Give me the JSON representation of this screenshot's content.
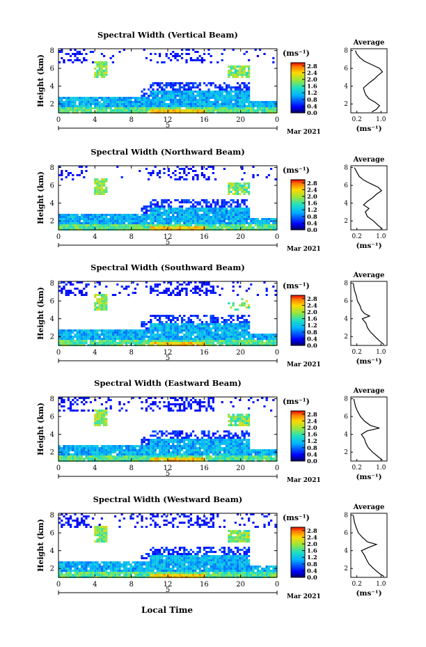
{
  "figure": {
    "x_axis_label": "Local Time",
    "date_label": "5",
    "month_label": "Mar 2021"
  },
  "chart_data": [
    {
      "type": "heatmap",
      "title": "Spectral Width (Vertical Beam)",
      "ylabel": "Height (km)",
      "xlabel": "Local Time",
      "x_ticks": [
        "0",
        "4",
        "8",
        "12",
        "16",
        "20",
        "0"
      ],
      "xlim": [
        0,
        24
      ],
      "y_ticks": [
        "2",
        "4",
        "6",
        "8"
      ],
      "ylim": [
        1,
        8.2
      ],
      "colorbar": {
        "unit": "(ms⁻¹)",
        "ticks": [
          "0.0",
          "0.4",
          "0.8",
          "1.2",
          "1.6",
          "2.0",
          "2.4",
          "2.8"
        ],
        "range": [
          0,
          3.0
        ]
      },
      "profile": {
        "title": "Average",
        "xlabel": "(ms⁻¹)",
        "x_ticks": [
          "0.2",
          "1.0"
        ],
        "xlim": [
          0,
          1.2
        ],
        "y_ticks": [
          "2",
          "4",
          "6",
          "8"
        ],
        "ylim": [
          1,
          8.2
        ],
        "points": [
          [
            0.7,
            1.1
          ],
          [
            0.85,
            1.4
          ],
          [
            0.95,
            1.8
          ],
          [
            0.8,
            2.2
          ],
          [
            0.6,
            2.6
          ],
          [
            0.5,
            3.0
          ],
          [
            0.45,
            3.4
          ],
          [
            0.42,
            3.8
          ],
          [
            0.52,
            4.1
          ],
          [
            0.62,
            4.4
          ],
          [
            0.78,
            4.8
          ],
          [
            0.9,
            5.2
          ],
          [
            1.05,
            5.6
          ],
          [
            0.95,
            6.0
          ],
          [
            0.7,
            6.4
          ],
          [
            0.45,
            6.8
          ],
          [
            0.3,
            7.2
          ],
          [
            0.2,
            7.6
          ],
          [
            0.15,
            8.0
          ]
        ]
      }
    },
    {
      "type": "heatmap",
      "title": "Spectral Width (Northward Beam)",
      "ylabel": "Height (km)",
      "xlabel": "Local Time",
      "x_ticks": [
        "0",
        "4",
        "8",
        "12",
        "16",
        "20",
        "0"
      ],
      "xlim": [
        0,
        24
      ],
      "y_ticks": [
        "2",
        "4",
        "6",
        "8"
      ],
      "ylim": [
        1,
        8.2
      ],
      "colorbar": {
        "unit": "(ms⁻¹)",
        "ticks": [
          "0.0",
          "0.4",
          "0.8",
          "1.2",
          "1.6",
          "2.0",
          "2.4",
          "2.8"
        ],
        "range": [
          0,
          3.0
        ]
      },
      "profile": {
        "title": "Average",
        "xlabel": "(ms⁻¹)",
        "x_ticks": [
          "0.2",
          "1.0"
        ],
        "xlim": [
          0,
          1.2
        ],
        "y_ticks": [
          "2",
          "4",
          "6",
          "8"
        ],
        "ylim": [
          1,
          8.2
        ],
        "points": [
          [
            1.05,
            1.1
          ],
          [
            0.9,
            1.5
          ],
          [
            0.75,
            2.0
          ],
          [
            0.55,
            2.5
          ],
          [
            0.48,
            3.0
          ],
          [
            0.6,
            3.4
          ],
          [
            0.42,
            3.8
          ],
          [
            0.55,
            4.2
          ],
          [
            0.72,
            4.6
          ],
          [
            0.85,
            5.0
          ],
          [
            1.02,
            5.4
          ],
          [
            0.9,
            5.8
          ],
          [
            0.65,
            6.2
          ],
          [
            0.42,
            6.6
          ],
          [
            0.28,
            7.0
          ],
          [
            0.18,
            7.6
          ],
          [
            0.12,
            8.0
          ]
        ]
      }
    },
    {
      "type": "heatmap",
      "title": "Spectral Width (Southward Beam)",
      "ylabel": "Height (km)",
      "xlabel": "Local Time",
      "x_ticks": [
        "0",
        "4",
        "8",
        "12",
        "16",
        "20",
        "0"
      ],
      "xlim": [
        0,
        24
      ],
      "y_ticks": [
        "2",
        "4",
        "6",
        "8"
      ],
      "ylim": [
        1,
        8.2
      ],
      "colorbar": {
        "unit": "(ms⁻¹)",
        "ticks": [
          "0.0",
          "0.4",
          "0.8",
          "1.2",
          "1.6",
          "2.0",
          "2.4",
          "2.8"
        ],
        "range": [
          0,
          3.0
        ]
      },
      "profile": {
        "title": "Average",
        "xlabel": "(ms⁻¹)",
        "x_ticks": [
          "0.2",
          "1.0"
        ],
        "xlim": [
          0,
          1.2
        ],
        "y_ticks": [
          "2",
          "4",
          "6",
          "8"
        ],
        "ylim": [
          1,
          8.2
        ],
        "points": [
          [
            1.1,
            1.1
          ],
          [
            0.95,
            1.5
          ],
          [
            0.8,
            2.0
          ],
          [
            0.65,
            2.5
          ],
          [
            0.55,
            3.0
          ],
          [
            0.5,
            3.5
          ],
          [
            0.38,
            4.0
          ],
          [
            0.62,
            4.3
          ],
          [
            0.45,
            4.6
          ],
          [
            0.35,
            5.0
          ],
          [
            0.3,
            5.5
          ],
          [
            0.22,
            6.0
          ],
          [
            0.18,
            6.6
          ],
          [
            0.12,
            7.2
          ],
          [
            0.08,
            8.0
          ]
        ]
      }
    },
    {
      "type": "heatmap",
      "title": "Spectral Width (Eastward Beam)",
      "ylabel": "Height (km)",
      "xlabel": "Local Time",
      "x_ticks": [
        "0",
        "4",
        "8",
        "12",
        "16",
        "20",
        "0"
      ],
      "xlim": [
        0,
        24
      ],
      "y_ticks": [
        "2",
        "4",
        "6",
        "8"
      ],
      "ylim": [
        1,
        8.2
      ],
      "colorbar": {
        "unit": "(ms⁻¹)",
        "ticks": [
          "0.0",
          "0.4",
          "0.8",
          "1.2",
          "1.6",
          "2.0",
          "2.4",
          "2.8"
        ],
        "range": [
          0,
          3.0
        ]
      },
      "profile": {
        "title": "Average",
        "xlabel": "(ms⁻¹)",
        "x_ticks": [
          "0.2",
          "1.0"
        ],
        "xlim": [
          0,
          1.2
        ],
        "y_ticks": [
          "2",
          "4",
          "6",
          "8"
        ],
        "ylim": [
          1,
          8.2
        ],
        "points": [
          [
            1.05,
            1.1
          ],
          [
            0.9,
            1.5
          ],
          [
            0.72,
            2.0
          ],
          [
            0.58,
            2.5
          ],
          [
            0.5,
            3.0
          ],
          [
            0.45,
            3.5
          ],
          [
            0.35,
            4.0
          ],
          [
            0.55,
            4.4
          ],
          [
            0.95,
            4.7
          ],
          [
            0.65,
            5.0
          ],
          [
            0.45,
            5.5
          ],
          [
            0.32,
            6.0
          ],
          [
            0.22,
            6.6
          ],
          [
            0.15,
            7.2
          ],
          [
            0.1,
            8.0
          ]
        ]
      }
    },
    {
      "type": "heatmap",
      "title": "Spectral Width (Westward Beam)",
      "ylabel": "Height (km)",
      "xlabel": "Local Time",
      "x_ticks": [
        "0",
        "4",
        "8",
        "12",
        "16",
        "20",
        "0"
      ],
      "xlim": [
        0,
        24
      ],
      "y_ticks": [
        "2",
        "4",
        "6",
        "8"
      ],
      "ylim": [
        1,
        8.2
      ],
      "colorbar": {
        "unit": "(ms⁻¹)",
        "ticks": [
          "0.0",
          "0.4",
          "0.8",
          "1.2",
          "1.6",
          "2.0",
          "2.4",
          "2.8"
        ],
        "range": [
          0,
          3.0
        ]
      },
      "profile": {
        "title": "Average",
        "xlabel": "(ms⁻¹)",
        "x_ticks": [
          "0.2",
          "1.0"
        ],
        "xlim": [
          0,
          1.2
        ],
        "y_ticks": [
          "2",
          "4",
          "6",
          "8"
        ],
        "ylim": [
          1,
          8.2
        ],
        "points": [
          [
            1.1,
            1.1
          ],
          [
            0.92,
            1.5
          ],
          [
            0.75,
            2.0
          ],
          [
            0.6,
            2.5
          ],
          [
            0.52,
            3.0
          ],
          [
            0.45,
            3.5
          ],
          [
            0.35,
            4.0
          ],
          [
            0.62,
            4.4
          ],
          [
            0.85,
            4.7
          ],
          [
            0.55,
            5.0
          ],
          [
            0.38,
            5.5
          ],
          [
            0.25,
            6.0
          ],
          [
            0.18,
            6.6
          ],
          [
            0.12,
            7.2
          ],
          [
            0.08,
            8.0
          ]
        ]
      }
    }
  ]
}
